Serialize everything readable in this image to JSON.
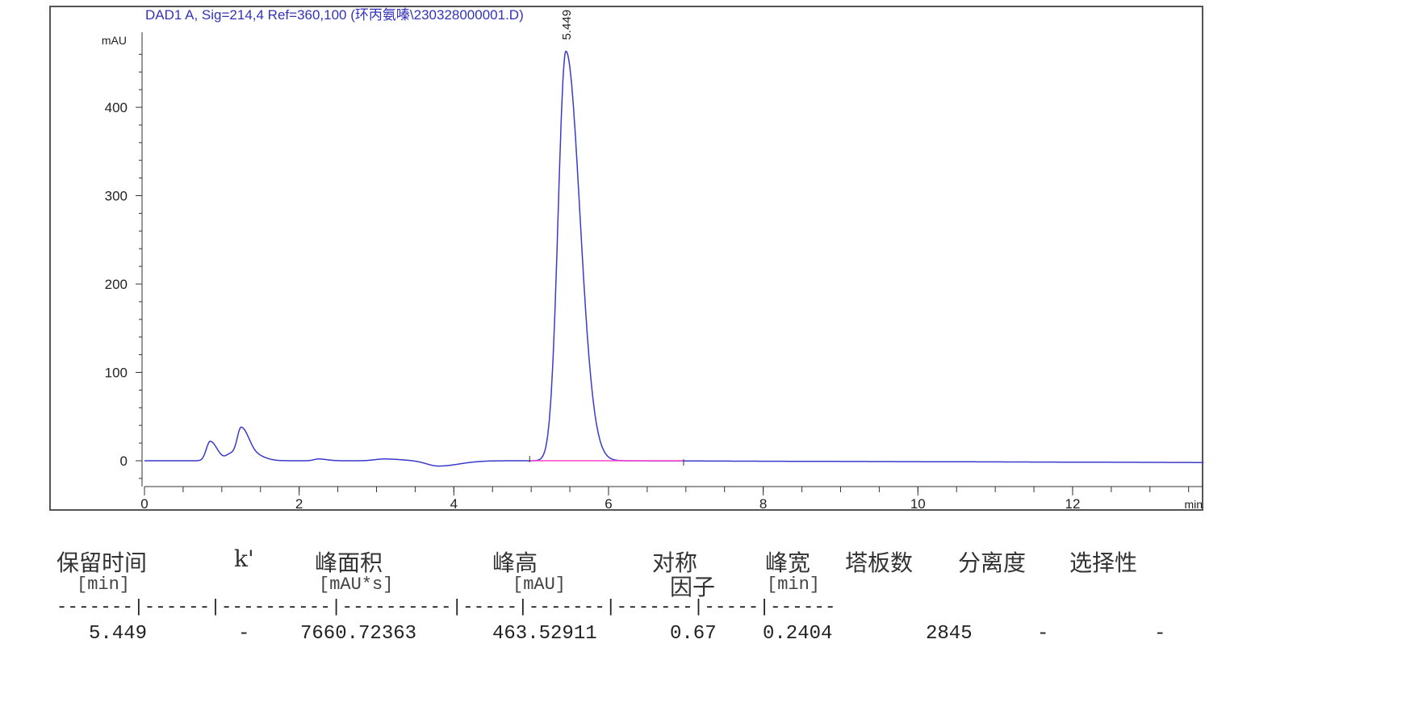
{
  "chart_data": {
    "type": "line",
    "title": "DAD1 A, Sig=214,4 Ref=360,100 (环丙氨嗪\\230328000001.D)",
    "ylabel": "mAU",
    "xlabel": "min",
    "xlim": [
      0,
      13.7
    ],
    "ylim": [
      -30,
      480
    ],
    "xticks": [
      0,
      2,
      4,
      6,
      8,
      10,
      12
    ],
    "yticks": [
      0,
      100,
      200,
      300,
      400
    ],
    "peak_label": "5.449",
    "peaks": [
      {
        "rt": 0.85,
        "height": 22,
        "width": 0.05
      },
      {
        "rt": 1.12,
        "height": 8,
        "width": 0.06
      },
      {
        "rt": 1.25,
        "height": 32,
        "width": 0.05
      },
      {
        "rt": 1.38,
        "height": 8,
        "width": 0.08
      },
      {
        "rt": 2.25,
        "height": 2,
        "width": 0.06
      },
      {
        "rt": 3.1,
        "height": 2,
        "width": 0.12
      },
      {
        "rt": 3.8,
        "height": -6,
        "width": 0.15
      },
      {
        "rt": 5.449,
        "height": 463.5,
        "width": 0.1
      }
    ],
    "baseline_drift_end": -2,
    "integration_baseline": [
      4.98,
      6.97
    ],
    "colors": {
      "trace": "#3a3acc",
      "baseline": "#ff44cc",
      "title": "#3333bb"
    },
    "grid": false
  },
  "table": {
    "headers": [
      "保留时间",
      "k'",
      "峰面积",
      "峰高",
      "对称",
      "峰宽",
      "塔板数",
      "分离度",
      "选择性"
    ],
    "headers2": [
      "因子"
    ],
    "units": [
      "[min]",
      "[mAU*s]",
      "[mAU]",
      "[min]"
    ],
    "separator": "-------|------|----------|----------|-----|-------|-------|-----|------",
    "rows": [
      [
        "5.449",
        "-",
        "7660.72363",
        "463.52911",
        "0.67",
        "0.2404",
        "2845",
        "-",
        "-"
      ]
    ]
  }
}
